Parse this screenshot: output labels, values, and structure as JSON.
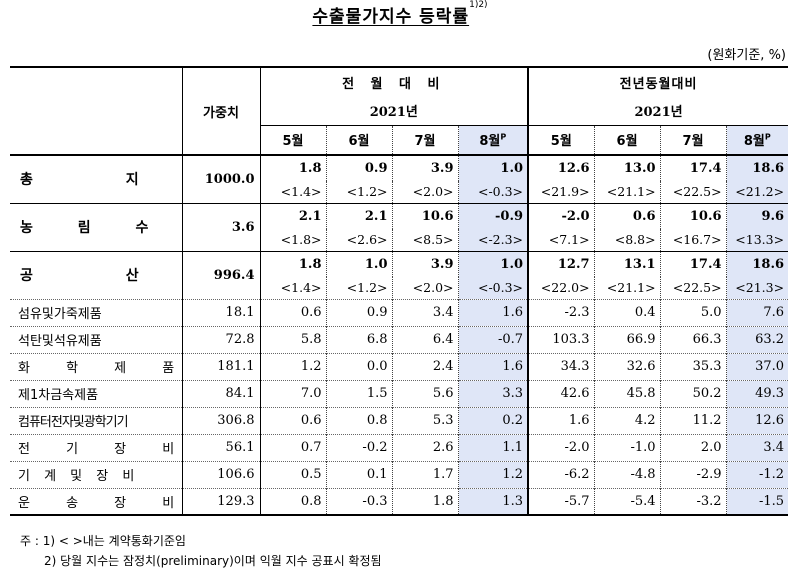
{
  "title": "수출물가지수 등락률",
  "title_sup": "1)2)",
  "unit": "(원화기준, %)",
  "header": {
    "weight": "가중치",
    "group1": "전 월 대 비",
    "group2": "전년동월대비",
    "year1": "2021년",
    "year2": "2021년",
    "months": [
      "5월",
      "6월",
      "7월",
      "8월"
    ],
    "p_mark": "P"
  },
  "main_rows": [
    {
      "label": "총 지 수",
      "weight": "1000.0",
      "mom": [
        "1.8",
        "0.9",
        "3.9",
        "1.0"
      ],
      "mom_yoy_sub": [
        "<1.4>",
        "<1.2>",
        "<2.0>",
        "<-0.3>"
      ],
      "yoy": [
        "12.6",
        "13.0",
        "17.4",
        "18.6"
      ],
      "yoy_sub": [
        "<21.9>",
        "<21.1>",
        "<22.5>",
        "<21.2>"
      ]
    },
    {
      "label": "농 림 수 산 품",
      "weight": "3.6",
      "mom": [
        "2.1",
        "2.1",
        "10.6",
        "-0.9"
      ],
      "mom_yoy_sub": [
        "<1.8>",
        "<2.6>",
        "<8.5>",
        "<-2.3>"
      ],
      "yoy": [
        "-2.0",
        "0.6",
        "10.6",
        "9.6"
      ],
      "yoy_sub": [
        "<7.1>",
        "<8.8>",
        "<16.7>",
        "<13.3>"
      ]
    },
    {
      "label": "공 산 품",
      "weight": "996.4",
      "mom": [
        "1.8",
        "1.0",
        "3.9",
        "1.0"
      ],
      "mom_yoy_sub": [
        "<1.4>",
        "<1.2>",
        "<2.0>",
        "<-0.3>"
      ],
      "yoy": [
        "12.7",
        "13.1",
        "17.4",
        "18.6"
      ],
      "yoy_sub": [
        "<22.0>",
        "<21.1>",
        "<22.5>",
        "<21.3>"
      ]
    }
  ],
  "sub_rows": [
    {
      "label": "섬유및가죽제품",
      "weight": "18.1",
      "vals": [
        "0.6",
        "0.9",
        "3.4",
        "1.6",
        "-2.3",
        "0.4",
        "5.0",
        "7.6"
      ]
    },
    {
      "label": "석탄및석유제품",
      "weight": "72.8",
      "vals": [
        "5.8",
        "6.8",
        "6.4",
        "-0.7",
        "103.3",
        "66.9",
        "66.3",
        "63.2"
      ]
    },
    {
      "label": "화 학 제 품",
      "weight": "181.1",
      "vals": [
        "1.2",
        "0.0",
        "2.4",
        "1.6",
        "34.3",
        "32.6",
        "35.3",
        "37.0"
      ]
    },
    {
      "label": "제1차금속제품",
      "weight": "84.1",
      "vals": [
        "7.0",
        "1.5",
        "5.6",
        "3.3",
        "42.6",
        "45.8",
        "50.2",
        "49.3"
      ]
    },
    {
      "label": "컴퓨터전자및광학기기",
      "weight": "306.8",
      "vals": [
        "0.6",
        "0.8",
        "5.3",
        "0.2",
        "1.6",
        "4.2",
        "11.2",
        "12.6"
      ]
    },
    {
      "label": "전 기 장 비",
      "weight": "56.1",
      "vals": [
        "0.7",
        "-0.2",
        "2.6",
        "1.1",
        "-2.0",
        "-1.0",
        "2.0",
        "3.4"
      ]
    },
    {
      "label": "기 계 및 장 비",
      "weight": "106.6",
      "vals": [
        "0.5",
        "0.1",
        "1.7",
        "1.2",
        "-6.2",
        "-4.8",
        "-2.9",
        "-1.2"
      ]
    },
    {
      "label": "운 송 장 비",
      "weight": "129.3",
      "vals": [
        "0.8",
        "-0.3",
        "1.8",
        "1.3",
        "-5.7",
        "-5.4",
        "-3.2",
        "-1.5"
      ]
    }
  ],
  "notes": [
    "주 :  1) < >내는 계약통화기준임",
    "2) 당월 지수는 잠정치(preliminary)이며 익월 지수 공표시 확정됨"
  ]
}
